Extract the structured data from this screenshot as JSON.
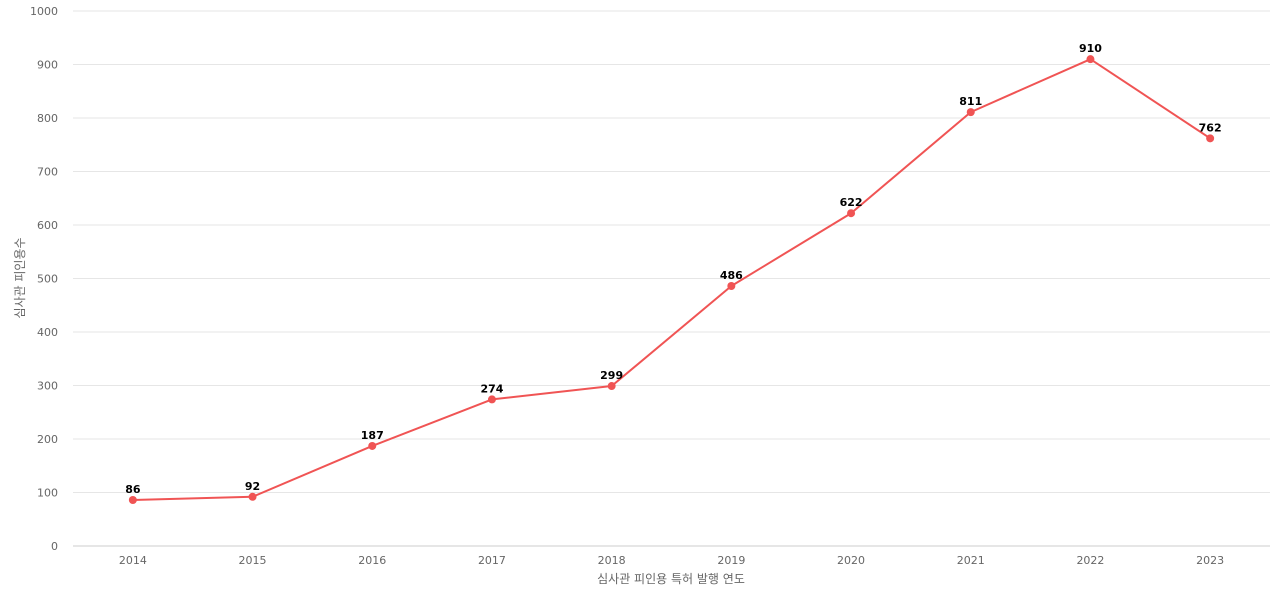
{
  "chart_data": {
    "type": "line",
    "title": "",
    "xlabel": "심사관 피인용 특허 발행 연도",
    "ylabel": "심사관 피인용수",
    "categories": [
      "2014",
      "2015",
      "2016",
      "2017",
      "2018",
      "2019",
      "2020",
      "2021",
      "2022",
      "2023"
    ],
    "series": [
      {
        "values": [
          86,
          92,
          187,
          274,
          299,
          486,
          622,
          811,
          910,
          762
        ]
      }
    ],
    "ylim": [
      0,
      1000
    ],
    "yticks": [
      0,
      100,
      200,
      300,
      400,
      500,
      600,
      700,
      800,
      900,
      1000
    ],
    "grid": true,
    "data_labels": true,
    "colors": {
      "line": "#f05454",
      "grid": "#e6e6e6",
      "axis_text": "#666666",
      "label_text": "#000000"
    }
  }
}
